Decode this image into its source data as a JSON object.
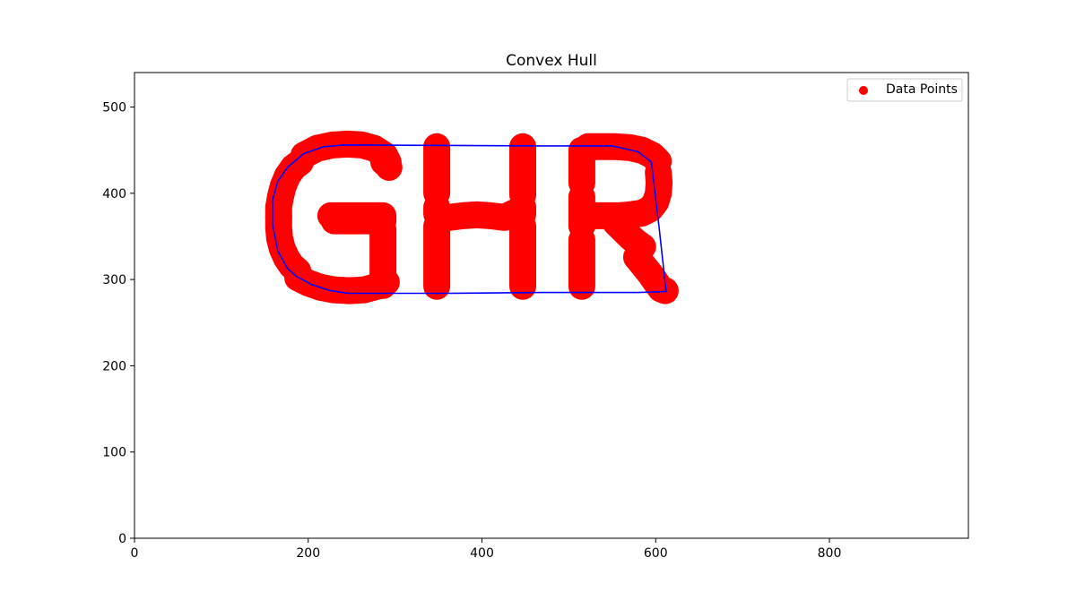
{
  "chart_data": {
    "type": "scatter",
    "title": "Convex Hull",
    "xlabel": "",
    "ylabel": "",
    "xlim": [
      0,
      960
    ],
    "ylim": [
      0,
      540
    ],
    "xticks": [
      0,
      200,
      400,
      600,
      800
    ],
    "yticks": [
      0,
      100,
      200,
      300,
      400,
      500
    ],
    "grid": false,
    "legend": {
      "placement": "top-right",
      "entries": [
        "Data Points"
      ]
    },
    "colors": {
      "points": "#ff0000",
      "hull": "#0000ff",
      "axes": "#000000"
    },
    "series": [
      {
        "name": "Data Points",
        "kind": "scatter",
        "strokes": [
          {
            "letter": "G",
            "part": "top-arc",
            "points": [
              [
                195,
                444
              ],
              [
                210,
                452
              ],
              [
                228,
                456
              ],
              [
                245,
                457
              ],
              [
                262,
                456
              ],
              [
                276,
                452
              ],
              [
                288,
                444
              ],
              [
                292,
                436
              ]
            ]
          },
          {
            "letter": "G",
            "part": "top-cap",
            "points": [
              [
                287,
                436
              ],
              [
                291,
                433
              ],
              [
                293,
                430
              ]
            ]
          },
          {
            "letter": "G",
            "part": "left-upper",
            "points": [
              [
                191,
                436
              ],
              [
                183,
                430
              ],
              [
                176,
                420
              ],
              [
                171,
                408
              ],
              [
                168,
                396
              ],
              [
                166,
                384
              ],
              [
                166,
                372
              ]
            ]
          },
          {
            "letter": "G",
            "part": "left-lower",
            "points": [
              [
                166,
                372
              ],
              [
                166,
                360
              ],
              [
                167,
                348
              ],
              [
                170,
                336
              ],
              [
                175,
                325
              ],
              [
                181,
                316
              ],
              [
                188,
                310
              ]
            ]
          },
          {
            "letter": "G",
            "part": "bottom-arc",
            "points": [
              [
                188,
                302
              ],
              [
                200,
                296
              ],
              [
                214,
                291
              ],
              [
                230,
                288
              ],
              [
                247,
                287
              ],
              [
                264,
                288
              ],
              [
                279,
                292
              ],
              [
                290,
                297
              ]
            ]
          },
          {
            "letter": "G",
            "part": "right-stem",
            "points": [
              [
                286,
                293
              ],
              [
                286,
                305
              ],
              [
                286,
                318
              ],
              [
                286,
                332
              ],
              [
                286,
                346
              ],
              [
                286,
                358
              ]
            ]
          },
          {
            "letter": "G",
            "part": "crossbar",
            "points": [
              [
                226,
                374
              ],
              [
                240,
                374
              ],
              [
                255,
                374
              ],
              [
                268,
                374
              ],
              [
                280,
                374
              ],
              [
                286,
                374
              ],
              [
                286,
                368
              ],
              [
                275,
                368
              ],
              [
                260,
                368
              ],
              [
                245,
                368
              ],
              [
                230,
                368
              ]
            ]
          },
          {
            "letter": "H",
            "part": "left-stem-top",
            "points": [
              [
                348,
                454
              ],
              [
                348,
                440
              ],
              [
                348,
                426
              ],
              [
                348,
                412
              ],
              [
                348,
                400
              ]
            ]
          },
          {
            "letter": "H",
            "part": "left-stem-mid",
            "points": [
              [
                348,
                384
              ],
              [
                348,
                376
              ]
            ]
          },
          {
            "letter": "H",
            "part": "left-stem-bottom",
            "points": [
              [
                348,
                362
              ],
              [
                348,
                348
              ],
              [
                348,
                334
              ],
              [
                348,
                320
              ],
              [
                348,
                306
              ],
              [
                348,
                292
              ]
            ]
          },
          {
            "letter": "H",
            "part": "crossbar",
            "points": [
              [
                362,
                372
              ],
              [
                378,
                374
              ],
              [
                394,
                375
              ],
              [
                410,
                374
              ],
              [
                426,
                372
              ],
              [
                438,
                378
              ]
            ]
          },
          {
            "letter": "H",
            "part": "right-stem-top",
            "points": [
              [
                447,
                454
              ],
              [
                447,
                440
              ],
              [
                447,
                426
              ],
              [
                447,
                412
              ],
              [
                447,
                398
              ]
            ]
          },
          {
            "letter": "H",
            "part": "right-stem-mid",
            "points": [
              [
                447,
                384
              ],
              [
                447,
                376
              ]
            ]
          },
          {
            "letter": "H",
            "part": "right-stem-bottom",
            "points": [
              [
                447,
                362
              ],
              [
                447,
                348
              ],
              [
                447,
                334
              ],
              [
                447,
                320
              ],
              [
                447,
                306
              ],
              [
                447,
                292
              ]
            ]
          },
          {
            "letter": "R",
            "part": "stem-top",
            "points": [
              [
                515,
                450
              ],
              [
                515,
                436
              ],
              [
                515,
                422
              ],
              [
                515,
                412
              ]
            ]
          },
          {
            "letter": "R",
            "part": "stem-mid",
            "points": [
              [
                515,
                396
              ],
              [
                515,
                384
              ],
              [
                515,
                372
              ],
              [
                515,
                362
              ]
            ]
          },
          {
            "letter": "R",
            "part": "stem-bottom",
            "points": [
              [
                515,
                346
              ],
              [
                515,
                332
              ],
              [
                515,
                318
              ],
              [
                515,
                304
              ],
              [
                515,
                292
              ]
            ]
          },
          {
            "letter": "R",
            "part": "bowl-top",
            "points": [
              [
                522,
                454
              ],
              [
                538,
                454
              ],
              [
                554,
                454
              ],
              [
                570,
                453
              ],
              [
                584,
                450
              ],
              [
                596,
                444
              ],
              [
                603,
                437
              ]
            ]
          },
          {
            "letter": "R",
            "part": "bowl-right",
            "points": [
              [
                603,
                424
              ],
              [
                604,
                412
              ],
              [
                603,
                400
              ],
              [
                600,
                390
              ],
              [
                594,
                382
              ],
              [
                584,
                377
              ],
              [
                570,
                375
              ],
              [
                556,
                374
              ],
              [
                540,
                374
              ],
              [
                524,
                374
              ]
            ]
          },
          {
            "letter": "R",
            "part": "leg-upper",
            "points": [
              [
                554,
                366
              ],
              [
                562,
                358
              ],
              [
                570,
                350
              ],
              [
                578,
                343
              ],
              [
                585,
                338
              ]
            ]
          },
          {
            "letter": "R",
            "part": "leg-lower",
            "points": [
              [
                578,
                326
              ],
              [
                586,
                316
              ],
              [
                594,
                306
              ],
              [
                601,
                296
              ],
              [
                606,
                289
              ],
              [
                611,
                287
              ]
            ]
          }
        ],
        "style": {
          "color": "#ff0000",
          "marker": "o"
        }
      },
      {
        "name": "",
        "kind": "line",
        "points": [
          [
            240,
            456
          ],
          [
            466,
            455
          ],
          [
            550,
            455
          ],
          [
            580,
            448
          ],
          [
            595,
            436
          ],
          [
            604,
            360
          ],
          [
            612,
            286
          ],
          [
            580,
            285
          ],
          [
            470,
            285
          ],
          [
            360,
            284
          ],
          [
            246,
            284
          ],
          [
            226,
            287
          ],
          [
            204,
            294
          ],
          [
            186,
            304
          ],
          [
            176,
            313
          ],
          [
            165,
            333
          ],
          [
            159,
            364
          ],
          [
            159,
            392
          ],
          [
            165,
            414
          ],
          [
            176,
            430
          ],
          [
            195,
            446
          ],
          [
            218,
            454
          ],
          [
            240,
            456
          ]
        ],
        "style": {
          "color": "#0000ff"
        }
      }
    ]
  }
}
